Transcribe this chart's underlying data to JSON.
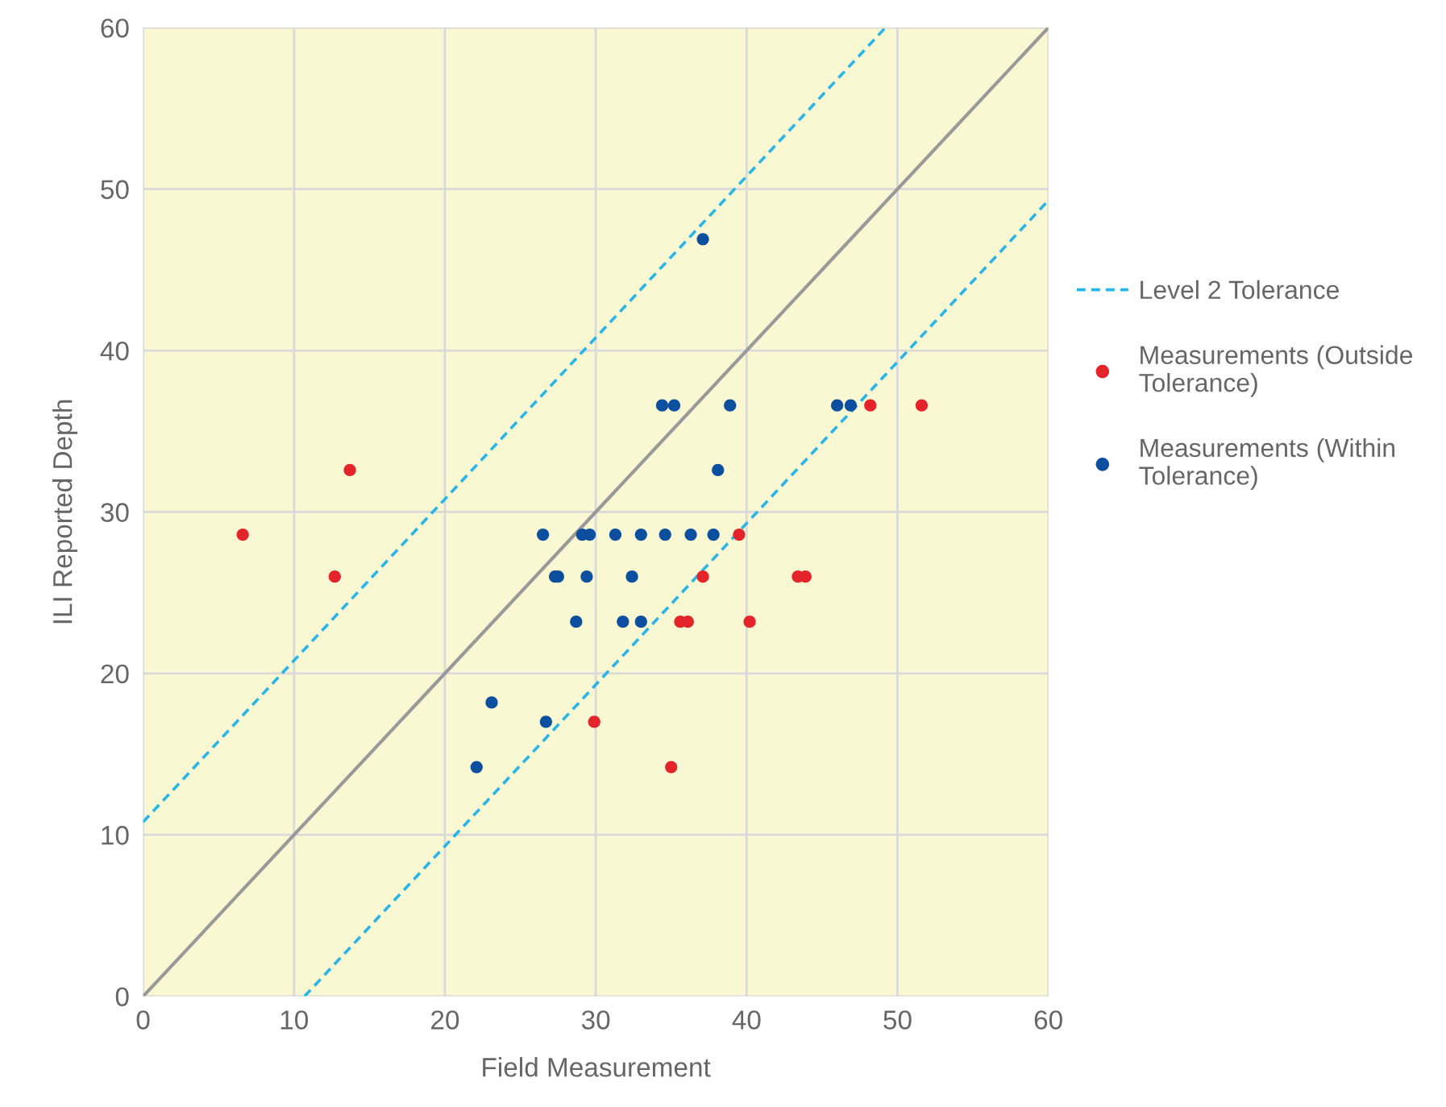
{
  "chart_data": {
    "type": "scatter",
    "xlabel": "Field Measurement",
    "ylabel": "ILI Reported Depth",
    "xlim": [
      0,
      60
    ],
    "ylim": [
      0,
      60
    ],
    "xticks": [
      0,
      10,
      20,
      30,
      40,
      50,
      60
    ],
    "yticks": [
      0,
      10,
      20,
      30,
      40,
      50,
      60
    ],
    "grid": true,
    "legend": "right",
    "series": [
      {
        "type": "line",
        "color": "#999999",
        "line_style": "solid",
        "marker": "none",
        "x": [
          0,
          60
        ],
        "values": [
          0,
          60
        ]
      },
      {
        "type": "line",
        "name": "Level 2 Tolerance",
        "color": "#29b5e8",
        "line_style": "dashed",
        "marker": "none",
        "x": [
          0,
          49.2
        ],
        "values": [
          10.8,
          60
        ]
      },
      {
        "type": "line",
        "color": "#29b5e8",
        "line_style": "dashed",
        "marker": "none",
        "x": [
          10.7,
          60
        ],
        "values": [
          0,
          49.3
        ]
      },
      {
        "name": "Measurements (Outside\nTolerance)",
        "color": "#e3242b",
        "marker": "circle",
        "x": [
          48.2,
          51.6,
          39.5,
          37.1,
          43.4,
          43.9,
          35.6,
          36.1,
          40.2,
          13.7,
          6.6,
          12.7,
          29.9,
          35.0
        ],
        "values": [
          36.6,
          36.6,
          28.6,
          26.0,
          26.0,
          26.0,
          23.2,
          23.2,
          23.2,
          32.6,
          28.6,
          26.0,
          17.0,
          14.2
        ]
      },
      {
        "name": "Measurements (Within\nTolerance)",
        "color": "#0b4f9e",
        "marker": "circle",
        "x": [
          34.4,
          35.2,
          38.9,
          46.0,
          46.9,
          38.1,
          26.5,
          29.1,
          29.6,
          31.3,
          33.0,
          34.6,
          36.3,
          37.8,
          27.3,
          27.5,
          29.4,
          32.4,
          28.7,
          31.8,
          33.0,
          23.1,
          26.7,
          22.1,
          37.1
        ],
        "values": [
          36.6,
          36.6,
          36.6,
          36.6,
          36.6,
          32.6,
          28.6,
          28.6,
          28.6,
          28.6,
          28.6,
          28.6,
          28.6,
          28.6,
          26.0,
          26.0,
          26.0,
          26.0,
          23.2,
          23.2,
          23.2,
          18.2,
          17.0,
          14.2,
          46.9
        ]
      }
    ]
  }
}
